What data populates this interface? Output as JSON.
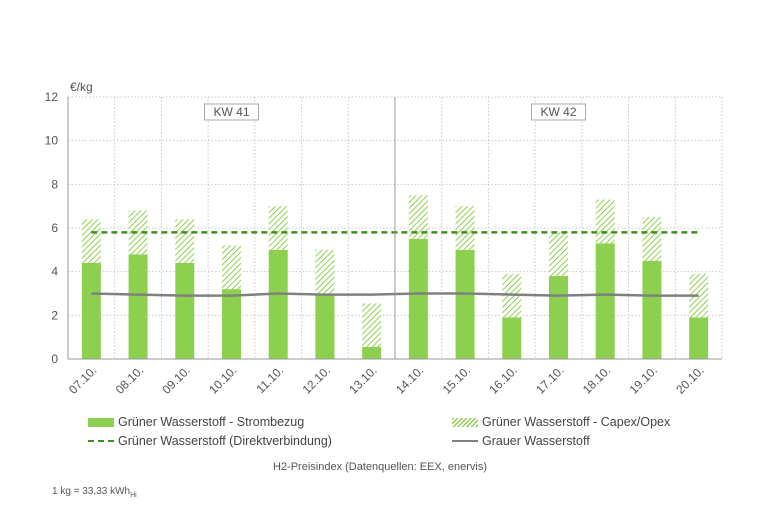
{
  "chart_data": {
    "type": "bar",
    "unit_label": "€/kg",
    "ylim": [
      0,
      12
    ],
    "yticks": [
      0,
      2,
      4,
      6,
      8,
      10,
      12
    ],
    "grid": true,
    "categories": [
      "07.10.",
      "08.10.",
      "09.10.",
      "10.10.",
      "11.10.",
      "12.10.",
      "13.10.",
      "14.10.",
      "15.10.",
      "16.10.",
      "17.10.",
      "18.10.",
      "19.10.",
      "20.10."
    ],
    "week_labels": [
      {
        "label": "KW 41",
        "from": 0,
        "to": 6
      },
      {
        "label": "KW 42",
        "from": 7,
        "to": 13
      }
    ],
    "series": [
      {
        "name": "Grüner Wasserstoff - Strombezug",
        "kind": "bar",
        "color": "#8dd04f",
        "values": [
          4.4,
          4.8,
          4.4,
          3.2,
          5.0,
          3.0,
          0.55,
          5.5,
          5.0,
          1.9,
          3.8,
          5.3,
          4.5,
          1.9
        ]
      },
      {
        "name": "Grüner Wasserstoff - Capex/Opex",
        "kind": "bar-stacked-hatched",
        "color": "#8dd04f",
        "values": [
          2.0,
          2.0,
          2.0,
          2.0,
          2.0,
          2.0,
          2.0,
          2.0,
          2.0,
          2.0,
          2.0,
          2.0,
          2.0,
          2.0
        ]
      },
      {
        "name": "Grüner Wasserstoff (Direktverbindung)",
        "kind": "line-dashed",
        "color": "#3f8f1f",
        "values": [
          5.8,
          5.8,
          5.8,
          5.8,
          5.8,
          5.8,
          5.8,
          5.8,
          5.8,
          5.8,
          5.8,
          5.8,
          5.8,
          5.8
        ]
      },
      {
        "name": "Grauer Wasserstoff",
        "kind": "line",
        "color": "#808080",
        "values": [
          3.0,
          2.95,
          2.9,
          2.9,
          3.0,
          2.95,
          2.95,
          3.0,
          3.0,
          2.95,
          2.9,
          2.95,
          2.9,
          2.9
        ]
      }
    ]
  },
  "caption": "H2-Preisindex (Datenquellen: EEX, enervis)",
  "footnote": {
    "main": "1 kg = 33,33 kWh",
    "sub": "Hi"
  }
}
